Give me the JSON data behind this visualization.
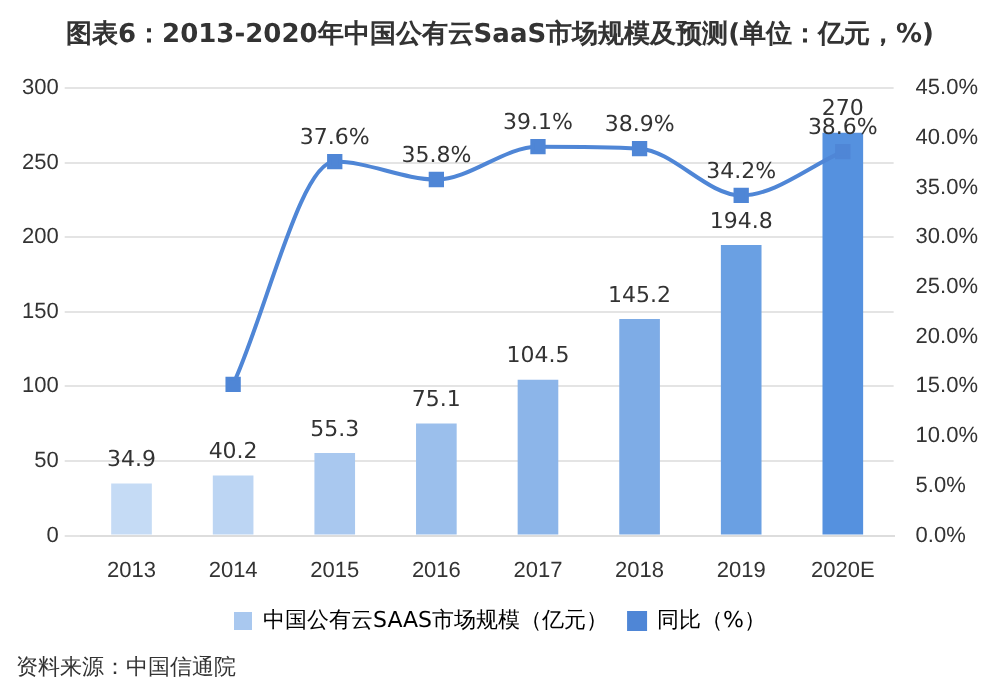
{
  "chart_data": {
    "type": "bar",
    "title": "图表6：2013-2020年中国公有云SaaS市场规模及预测(单位：亿元，%)",
    "categories": [
      "2013",
      "2014",
      "2015",
      "2016",
      "2017",
      "2018",
      "2019",
      "2020E"
    ],
    "series": [
      {
        "name": "中国公有云SAAS市场规模（亿元）",
        "color": "#a9c8ef",
        "colors": [
          "#c5dbf5",
          "#bcd5f3",
          "#a9c8ef",
          "#9bbfec",
          "#8cb5e9",
          "#7eace6",
          "#6aa0e3",
          "#5591df"
        ],
        "values": [
          34.9,
          40.2,
          55.3,
          75.1,
          104.5,
          145.2,
          194.8,
          270
        ],
        "value_labels": [
          "34.9",
          "40.2",
          "55.3",
          "75.1",
          "104.5",
          "145.2",
          "194.8",
          "270"
        ]
      },
      {
        "name": "同比（%）",
        "type": "line",
        "axis": "y2",
        "color": "#4f86d6",
        "values": [
          null,
          15.2,
          37.6,
          35.8,
          39.1,
          38.9,
          34.2,
          38.6
        ],
        "value_labels": [
          null,
          null,
          "37.6%",
          "35.8%",
          "39.1%",
          "38.9%",
          "34.2%",
          "38.6%"
        ]
      }
    ],
    "ylim": [
      0,
      300
    ],
    "yticks": [
      0,
      50,
      100,
      150,
      200,
      250,
      300
    ],
    "y2lim": [
      0,
      45
    ],
    "y2ticks": [
      {
        "value": 0,
        "label": "0.0%"
      },
      {
        "value": 5,
        "label": "5.0%"
      },
      {
        "value": 10,
        "label": "10.0%"
      },
      {
        "value": 15,
        "label": "15.0%"
      },
      {
        "value": 20,
        "label": "20.0%"
      },
      {
        "value": 25,
        "label": "25.0%"
      },
      {
        "value": 30,
        "label": "30.0%"
      },
      {
        "value": 35,
        "label": "35.0%"
      },
      {
        "value": 40,
        "label": "40.0%"
      },
      {
        "value": 45,
        "label": "45.0%"
      }
    ],
    "grid": "y",
    "legend": "bottom",
    "marker": "square",
    "line_style": "solid",
    "annotations": [
      "资料来源：中国信通院"
    ]
  }
}
